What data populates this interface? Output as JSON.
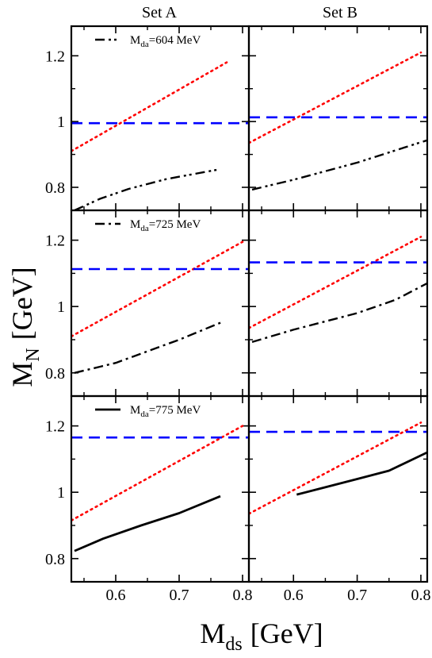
{
  "figure": {
    "col_titles": [
      "Set A",
      "Set B"
    ],
    "ylabel_main": "M",
    "ylabel_sub": "N",
    "ylabel_unit": "[GeV]",
    "xlabel_main": "M",
    "xlabel_sub": "ds",
    "xlabel_unit": "[GeV]"
  },
  "chart_data": {
    "type": "line",
    "layout": "3 rows x 2 columns, shared axes",
    "xlim": [
      0.53,
      0.81
    ],
    "xticks": [
      0.6,
      0.7,
      0.8
    ],
    "x_tick_labels": [
      "0.6",
      "0.7",
      "0.8"
    ],
    "ylim": [
      0.73,
      1.29
    ],
    "yticks": [
      0.8,
      1.0,
      1.2
    ],
    "y_tick_labels": [
      "0.8",
      "1",
      "1.2"
    ],
    "colors": {
      "dotted": "#ff0000",
      "dashed": "#0000ff",
      "primary": "#000000"
    },
    "panels": [
      {
        "row": 0,
        "col": 0,
        "legend": {
          "label_main": "M",
          "label_sub": "da",
          "label_value": "=604 MeV",
          "style": "dashdotdot"
        },
        "series": [
          {
            "style": "dotted",
            "points": [
              [
                0.53,
                0.91
              ],
              [
                0.775,
                1.18
              ]
            ]
          },
          {
            "style": "dashed",
            "points": [
              [
                0.53,
                0.995
              ],
              [
                0.81,
                0.995
              ]
            ]
          },
          {
            "style": "dashdotdot",
            "points": [
              [
                0.535,
                0.73
              ],
              [
                0.575,
                0.765
              ],
              [
                0.62,
                0.795
              ],
              [
                0.68,
                0.825
              ],
              [
                0.75,
                0.85
              ],
              [
                0.765,
                0.855
              ]
            ]
          }
        ]
      },
      {
        "row": 0,
        "col": 1,
        "series": [
          {
            "style": "dotted",
            "points": [
              [
                0.53,
                0.935
              ],
              [
                0.8,
                1.21
              ]
            ]
          },
          {
            "style": "dashed",
            "points": [
              [
                0.53,
                1.013
              ],
              [
                0.81,
                1.013
              ]
            ]
          },
          {
            "style": "dashdotdot",
            "points": [
              [
                0.535,
                0.793
              ],
              [
                0.6,
                0.823
              ],
              [
                0.7,
                0.875
              ],
              [
                0.8,
                0.937
              ],
              [
                0.81,
                0.943
              ]
            ]
          }
        ]
      },
      {
        "row": 1,
        "col": 0,
        "legend": {
          "label_main": "M",
          "label_sub": "da",
          "label_value": "=725 MeV",
          "style": "dashdot"
        },
        "series": [
          {
            "style": "dotted",
            "points": [
              [
                0.53,
                0.91
              ],
              [
                0.8,
                1.195
              ]
            ]
          },
          {
            "style": "dashed",
            "points": [
              [
                0.53,
                1.113
              ],
              [
                0.81,
                1.113
              ]
            ]
          },
          {
            "style": "dashdot",
            "points": [
              [
                0.535,
                0.8
              ],
              [
                0.6,
                0.83
              ],
              [
                0.7,
                0.9
              ],
              [
                0.77,
                0.955
              ]
            ]
          }
        ]
      },
      {
        "row": 1,
        "col": 1,
        "series": [
          {
            "style": "dotted",
            "points": [
              [
                0.53,
                0.935
              ],
              [
                0.8,
                1.21
              ]
            ]
          },
          {
            "style": "dashed",
            "points": [
              [
                0.53,
                1.133
              ],
              [
                0.81,
                1.133
              ]
            ]
          },
          {
            "style": "dashdot",
            "points": [
              [
                0.535,
                0.893
              ],
              [
                0.6,
                0.93
              ],
              [
                0.7,
                0.98
              ],
              [
                0.76,
                1.02
              ],
              [
                0.81,
                1.07
              ]
            ]
          }
        ]
      },
      {
        "row": 2,
        "col": 0,
        "legend": {
          "label_main": "M",
          "label_sub": "da",
          "label_value": "=775 MeV",
          "style": "solid"
        },
        "series": [
          {
            "style": "dotted",
            "points": [
              [
                0.53,
                0.915
              ],
              [
                0.8,
                1.2
              ]
            ]
          },
          {
            "style": "dashed",
            "points": [
              [
                0.53,
                1.165
              ],
              [
                0.81,
                1.165
              ]
            ]
          },
          {
            "style": "solid",
            "points": [
              [
                0.535,
                0.823
              ],
              [
                0.58,
                0.86
              ],
              [
                0.64,
                0.9
              ],
              [
                0.7,
                0.937
              ],
              [
                0.765,
                0.988
              ]
            ]
          }
        ]
      },
      {
        "row": 2,
        "col": 1,
        "series": [
          {
            "style": "dotted",
            "points": [
              [
                0.53,
                0.935
              ],
              [
                0.8,
                1.21
              ]
            ]
          },
          {
            "style": "dashed",
            "points": [
              [
                0.53,
                1.182
              ],
              [
                0.81,
                1.182
              ]
            ]
          },
          {
            "style": "solid",
            "points": [
              [
                0.605,
                0.993
              ],
              [
                0.65,
                1.015
              ],
              [
                0.7,
                1.04
              ],
              [
                0.75,
                1.065
              ],
              [
                0.81,
                1.12
              ]
            ]
          }
        ]
      }
    ]
  }
}
